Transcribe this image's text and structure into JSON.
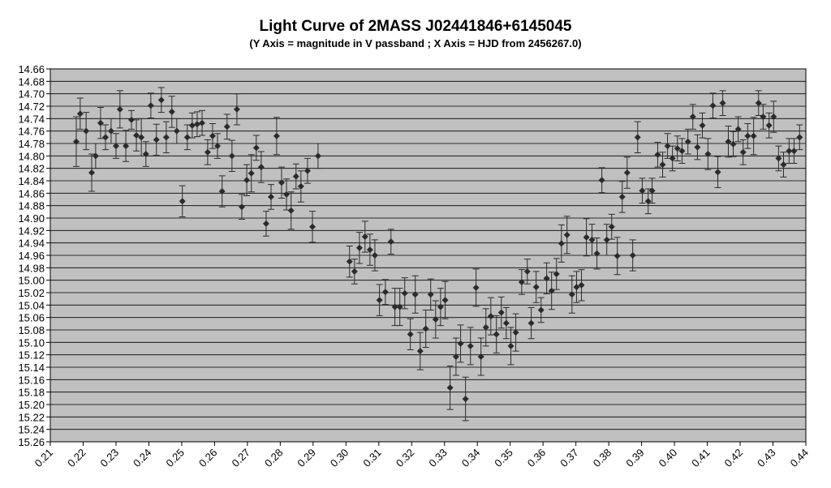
{
  "chart_data": {
    "type": "scatter",
    "title": "Light Curve of 2MASS J02441846+6145045",
    "subtitle": "(Y Axis = magnitude in V passband ; X Axis = HJD from 2456267.0)",
    "x": [
      0.2179,
      0.2191,
      0.2209,
      0.2226,
      0.2238,
      0.2253,
      0.2268,
      0.2285,
      0.23,
      0.2312,
      0.233,
      0.2347,
      0.2362,
      0.2377,
      0.2391,
      0.2406,
      0.2423,
      0.2438,
      0.2453,
      0.247,
      0.2485,
      0.2502,
      0.2517,
      0.2532,
      0.2547,
      0.2562,
      0.2579,
      0.2594,
      0.2609,
      0.2623,
      0.2638,
      0.2653,
      0.2668,
      0.2683,
      0.2698,
      0.2712,
      0.2727,
      0.2742,
      0.2757,
      0.2772,
      0.2789,
      0.2804,
      0.2819,
      0.2833,
      0.2848,
      0.2863,
      0.2883,
      0.2898,
      0.2915,
      0.3011,
      0.3026,
      0.3041,
      0.3058,
      0.3073,
      0.3088,
      0.3102,
      0.312,
      0.3137,
      0.3149,
      0.3164,
      0.3179,
      0.3196,
      0.3211,
      0.3226,
      0.3243,
      0.3258,
      0.3273,
      0.3288,
      0.3302,
      0.3317,
      0.3335,
      0.3349,
      0.3364,
      0.3379,
      0.3396,
      0.3411,
      0.3426,
      0.3441,
      0.3458,
      0.3473,
      0.3488,
      0.3502,
      0.3517,
      0.3535,
      0.3552,
      0.3564,
      0.3579,
      0.3594,
      0.3611,
      0.3626,
      0.3641,
      0.3656,
      0.3673,
      0.3688,
      0.3702,
      0.3717,
      0.3732,
      0.3749,
      0.3764,
      0.3779,
      0.3794,
      0.3809,
      0.3826,
      0.3841,
      0.3856,
      0.3873,
      0.3888,
      0.3902,
      0.392,
      0.3932,
      0.3949,
      0.3964,
      0.3979,
      0.3994,
      0.4009,
      0.4023,
      0.4041,
      0.4056,
      0.407,
      0.4085,
      0.4102,
      0.4117,
      0.4132,
      0.4147,
      0.4164,
      0.4179,
      0.4194,
      0.4209,
      0.4223,
      0.4241,
      0.4256,
      0.427,
      0.4288,
      0.4302,
      0.4317,
      0.4332,
      0.4349,
      0.4364,
      0.4381
    ],
    "values": [
      14.777,
      14.732,
      14.76,
      14.827,
      14.8,
      14.747,
      14.77,
      14.76,
      14.784,
      14.725,
      14.784,
      14.742,
      14.767,
      14.77,
      14.797,
      14.719,
      14.774,
      14.71,
      14.77,
      14.729,
      14.76,
      14.873,
      14.77,
      14.751,
      14.749,
      14.747,
      14.794,
      14.768,
      14.784,
      14.857,
      14.753,
      14.8,
      14.725,
      14.882,
      14.839,
      14.828,
      14.787,
      14.818,
      14.909,
      14.866,
      14.768,
      14.843,
      14.862,
      14.888,
      14.833,
      14.849,
      14.824,
      14.914,
      14.8,
      14.97,
      14.986,
      14.948,
      14.93,
      14.951,
      14.96,
      15.032,
      15.019,
      14.938,
      15.043,
      15.043,
      15.021,
      15.087,
      15.023,
      15.114,
      15.078,
      15.023,
      15.063,
      15.043,
      15.032,
      15.173,
      15.123,
      15.102,
      15.191,
      15.106,
      15.012,
      15.123,
      15.076,
      15.058,
      15.087,
      15.052,
      15.069,
      15.106,
      15.084,
      15.003,
      14.986,
      15.069,
      15.011,
      15.048,
      14.997,
      15.017,
      14.99,
      14.941,
      14.927,
      15.023,
      15.011,
      15.008,
      14.931,
      14.935,
      14.957,
      14.839,
      14.935,
      14.914,
      14.961,
      14.866,
      14.827,
      14.96,
      14.77,
      14.856,
      14.873,
      14.856,
      14.798,
      14.814,
      14.784,
      14.804,
      14.788,
      14.792,
      14.777,
      14.737,
      14.786,
      14.751,
      14.797,
      14.719,
      14.826,
      14.715,
      14.777,
      14.781,
      14.757,
      14.794,
      14.768,
      14.768,
      14.715,
      14.737,
      14.751,
      14.737,
      14.804,
      14.814,
      14.792,
      14.792,
      14.77
    ],
    "errors": [
      0.04,
      0.025,
      0.03,
      0.03,
      0.02,
      0.025,
      0.02,
      0.02,
      0.02,
      0.03,
      0.025,
      0.015,
      0.025,
      0.03,
      0.02,
      0.02,
      0.025,
      0.02,
      0.025,
      0.025,
      0.02,
      0.025,
      0.02,
      0.02,
      0.02,
      0.02,
      0.02,
      0.02,
      0.02,
      0.025,
      0.02,
      0.025,
      0.025,
      0.02,
      0.025,
      0.03,
      0.02,
      0.025,
      0.02,
      0.02,
      0.03,
      0.025,
      0.025,
      0.03,
      0.02,
      0.025,
      0.02,
      0.025,
      0.02,
      0.025,
      0.02,
      0.025,
      0.025,
      0.025,
      0.025,
      0.025,
      0.02,
      0.02,
      0.03,
      0.03,
      0.025,
      0.025,
      0.03,
      0.03,
      0.03,
      0.025,
      0.03,
      0.03,
      0.03,
      0.035,
      0.03,
      0.03,
      0.035,
      0.03,
      0.03,
      0.03,
      0.03,
      0.03,
      0.03,
      0.025,
      0.025,
      0.03,
      0.03,
      0.02,
      0.02,
      0.025,
      0.025,
      0.02,
      0.025,
      0.03,
      0.025,
      0.03,
      0.03,
      0.03,
      0.025,
      0.025,
      0.03,
      0.025,
      0.025,
      0.02,
      0.025,
      0.02,
      0.03,
      0.025,
      0.025,
      0.025,
      0.025,
      0.02,
      0.02,
      0.02,
      0.02,
      0.02,
      0.02,
      0.02,
      0.02,
      0.02,
      0.02,
      0.02,
      0.02,
      0.02,
      0.025,
      0.02,
      0.025,
      0.02,
      0.025,
      0.02,
      0.02,
      0.02,
      0.02,
      0.03,
      0.02,
      0.02,
      0.02,
      0.025,
      0.02,
      0.02,
      0.02,
      0.02,
      0.02
    ],
    "color": "#2b2b2b",
    "xlim": [
      0.21,
      0.44
    ],
    "xticks": [
      0.21,
      0.22,
      0.23,
      0.24,
      0.25,
      0.26,
      0.27,
      0.28,
      0.29,
      {
        "value": 0.3,
        "label": "0.30"
      },
      0.31,
      0.32,
      0.33,
      0.34,
      0.35,
      0.36,
      0.37,
      0.38,
      0.39,
      {
        "value": 0.4,
        "label": "0.40"
      },
      0.41,
      0.42,
      0.43,
      0.44
    ],
    "ylim": [
      15.26,
      14.66
    ],
    "yticks": [
      14.66,
      14.68,
      {
        "value": 14.7,
        "label": "14.70"
      },
      14.72,
      14.74,
      14.76,
      14.78,
      {
        "value": 14.8,
        "label": "14.80"
      },
      14.82,
      14.84,
      14.86,
      14.88,
      {
        "value": 14.9,
        "label": "14.90"
      },
      14.92,
      14.94,
      14.96,
      14.98,
      {
        "value": 15,
        "label": "15.00"
      },
      15.02,
      15.04,
      15.06,
      15.08,
      {
        "value": 15.1,
        "label": "15.10"
      },
      15.12,
      15.14,
      15.16,
      15.18,
      {
        "value": 15.2,
        "label": "15.20"
      },
      15.22,
      15.24,
      15.26
    ],
    "grid": true
  }
}
